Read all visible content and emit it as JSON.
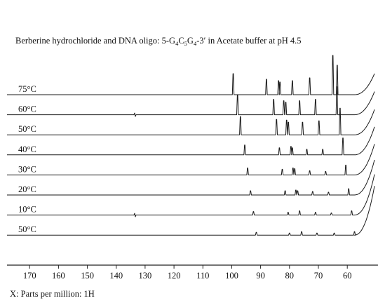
{
  "chart_data": {
    "type": "line",
    "title_parts": [
      {
        "t": "Berberine hydrochloride and DNA oligo: 5-G",
        "s": false
      },
      {
        "t": "4",
        "s": true
      },
      {
        "t": "C",
        "s": false
      },
      {
        "t": "5",
        "s": true
      },
      {
        "t": "G",
        "s": false
      },
      {
        "t": "4",
        "s": true
      },
      {
        "t": "-3′ in Acetate buffer at pH 4.5",
        "s": false
      }
    ],
    "xlabel": "X: Parts per million: 1H",
    "x_reversed": true,
    "xlim": [
      172,
      53
    ],
    "x_ticks": [
      170,
      160,
      150,
      140,
      130,
      120,
      110,
      100,
      90,
      80,
      70,
      60
    ],
    "grid": false,
    "legend": "none",
    "line_color": "#1a1a1a",
    "series": [
      {
        "name": "75°C",
        "peaks": [
          [
            99.5,
            30
          ],
          [
            88,
            22
          ],
          [
            83.8,
            20
          ],
          [
            83.3,
            18
          ],
          [
            79,
            20
          ],
          [
            73,
            24
          ],
          [
            65,
            56
          ],
          [
            63.5,
            42
          ]
        ],
        "tail_rise": 30,
        "glitch": false
      },
      {
        "name": "60°C",
        "peaks": [
          [
            98,
            28
          ],
          [
            85.5,
            22
          ],
          [
            82,
            20
          ],
          [
            81.3,
            18
          ],
          [
            76.5,
            20
          ],
          [
            71,
            22
          ],
          [
            63.6,
            40
          ]
        ],
        "tail_rise": 33,
        "glitch": true
      },
      {
        "name": "50°C",
        "peaks": [
          [
            97,
            26
          ],
          [
            84.5,
            22
          ],
          [
            81,
            21
          ],
          [
            80.4,
            18
          ],
          [
            75.5,
            18
          ],
          [
            69.8,
            20
          ],
          [
            62.5,
            38
          ]
        ],
        "tail_rise": 36,
        "glitch": false
      },
      {
        "name": "40°C",
        "peaks": [
          [
            95.5,
            14
          ],
          [
            83.5,
            10
          ],
          [
            79.5,
            12
          ],
          [
            79,
            10
          ],
          [
            74,
            8
          ],
          [
            68.5,
            8
          ],
          [
            61.5,
            24
          ]
        ],
        "tail_rise": 40,
        "glitch": false
      },
      {
        "name": "30°C",
        "peaks": [
          [
            94.5,
            10
          ],
          [
            82.5,
            8
          ],
          [
            78.8,
            10
          ],
          [
            78.2,
            9
          ],
          [
            73,
            6
          ],
          [
            67.5,
            5
          ],
          [
            60.5,
            14
          ]
        ],
        "tail_rise": 44,
        "glitch": false
      },
      {
        "name": "20°C",
        "peaks": [
          [
            93.5,
            6
          ],
          [
            81.5,
            6
          ],
          [
            77.8,
            7
          ],
          [
            77.2,
            6
          ],
          [
            72,
            5
          ],
          [
            66.5,
            4
          ],
          [
            59.5,
            9
          ]
        ],
        "tail_rise": 50,
        "glitch": false
      },
      {
        "name": "10°C",
        "peaks": [
          [
            92.5,
            5
          ],
          [
            80.5,
            4
          ],
          [
            76.5,
            6
          ],
          [
            71,
            4
          ],
          [
            65.5,
            3
          ],
          [
            58.5,
            6
          ]
        ],
        "tail_rise": 58,
        "glitch": true
      },
      {
        "name": "50°C",
        "peaks": [
          [
            91.5,
            4
          ],
          [
            80,
            3
          ],
          [
            75.8,
            5
          ],
          [
            70.5,
            3
          ],
          [
            64.5,
            3
          ],
          [
            57.5,
            5
          ]
        ],
        "tail_rise": 70,
        "glitch": false
      }
    ]
  }
}
